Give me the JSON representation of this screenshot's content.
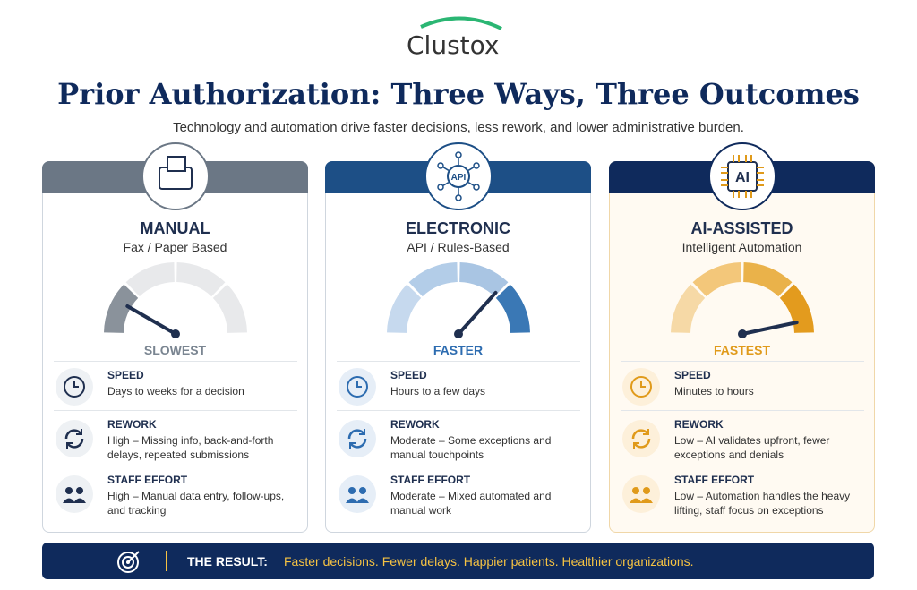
{
  "logo": "Clustox",
  "header": {
    "title": "Prior Authorization: Three Ways, Three Outcomes",
    "subtitle": "Technology and automation drive faster decisions, less rework, and lower administrative burden."
  },
  "cards": [
    {
      "name": "MANUAL",
      "subtitle": "Fax / Paper Based",
      "speed_label": "SLOWEST",
      "rows": [
        {
          "label": "SPEED",
          "text": "Days to weeks for a decision"
        },
        {
          "label": "REWORK",
          "text": "High – Missing info, back-and-forth delays, repeated submissions"
        },
        {
          "label": "STAFF EFFORT",
          "text": "High – Manual data entry, follow-ups, and tracking"
        }
      ]
    },
    {
      "name": "ELECTRONIC",
      "subtitle": "API / Rules-Based",
      "speed_label": "FASTER",
      "icon_text": "API",
      "rows": [
        {
          "label": "SPEED",
          "text": "Hours to a few days"
        },
        {
          "label": "REWORK",
          "text": "Moderate – Some exceptions and manual touchpoints"
        },
        {
          "label": "STAFF EFFORT",
          "text": "Moderate – Mixed automated and manual work"
        }
      ]
    },
    {
      "name": "AI-ASSISTED",
      "subtitle": "Intelligent Automation",
      "speed_label": "FASTEST",
      "icon_text": "AI",
      "rows": [
        {
          "label": "SPEED",
          "text": "Minutes to hours"
        },
        {
          "label": "REWORK",
          "text": "Low – AI validates upfront, fewer exceptions and denials"
        },
        {
          "label": "STAFF EFFORT",
          "text": "Low – Automation handles the heavy lifting, staff focus on exceptions"
        }
      ]
    }
  ],
  "result": {
    "label": "THE RESULT:",
    "text": "Faster decisions. Fewer delays. Happier patients. Healthier organizations."
  }
}
